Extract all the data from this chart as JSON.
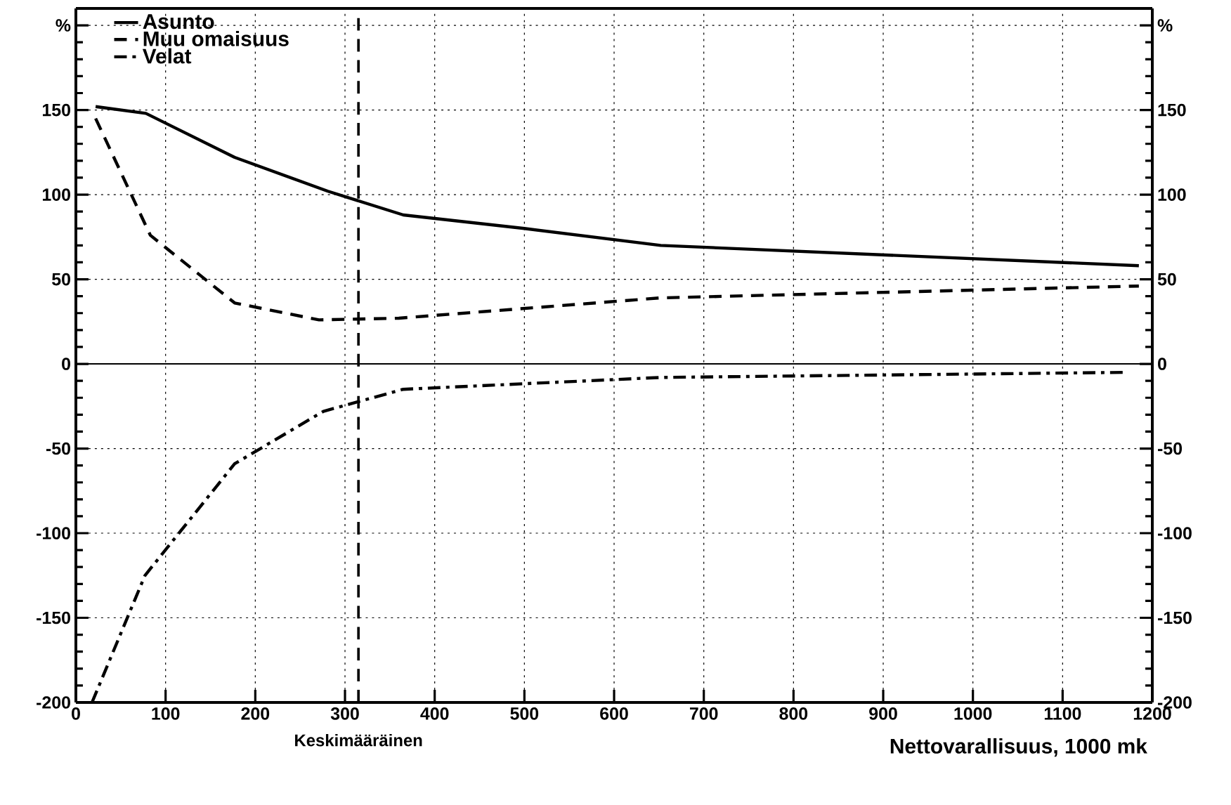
{
  "chart_data": {
    "type": "line",
    "xlabel": "Nettovarallisuus, 1000 mk",
    "series": [
      {
        "name": "Asunto",
        "color": "#000000",
        "line_style": "solid",
        "x": [
          22,
          78,
          177,
          281,
          365,
          500,
          652,
          1185
        ],
        "values": [
          152,
          148,
          122,
          102,
          88,
          80,
          70,
          58
        ]
      },
      {
        "name": "Muu omaisuus",
        "color": "#000000",
        "line_style": "dashed",
        "x": [
          22,
          83,
          177,
          271,
          360,
          652,
          1185
        ],
        "values": [
          145,
          76,
          36,
          26,
          27,
          39,
          46
        ]
      },
      {
        "name": "Velat",
        "color": "#000000",
        "line_style": "dashdot",
        "x": [
          18,
          77,
          177,
          276,
          365,
          652,
          1170
        ],
        "values": [
          -200,
          -125,
          -59,
          -28,
          -15,
          -8,
          -5
        ]
      }
    ],
    "xlim": [
      0,
      1200
    ],
    "xticks": [
      0,
      100,
      200,
      300,
      400,
      500,
      600,
      700,
      800,
      900,
      1000,
      1100,
      1200
    ],
    "ylim": [
      -200,
      210
    ],
    "yticks": [
      -200,
      -150,
      -100,
      -50,
      0,
      50,
      100,
      150,
      {
        "value": 200,
        "label": "%"
      }
    ],
    "y2lim": [
      -200,
      210
    ],
    "y2ticks": [
      -200,
      -150,
      -100,
      -50,
      0,
      50,
      100,
      150,
      {
        "value": 200,
        "label": "%"
      }
    ],
    "ref_lines": [
      {
        "axis": "y",
        "value": 0,
        "color": "#000000",
        "line_style": "solid"
      },
      {
        "axis": "x",
        "value": 315,
        "label": "Keskimääräinen",
        "color": "#000000",
        "line_style": "dashed"
      }
    ],
    "grid": true,
    "legend": "top left"
  }
}
